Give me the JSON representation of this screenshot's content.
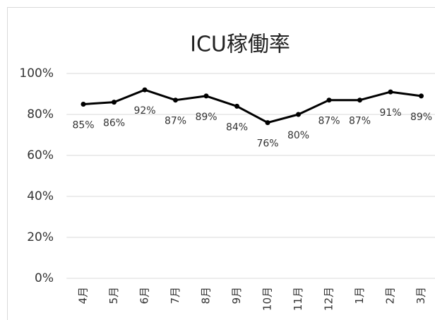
{
  "chart_data": {
    "type": "line",
    "title": "ICU稼働率",
    "categories": [
      "4月",
      "5月",
      "6月",
      "7月",
      "8月",
      "9月",
      "10月",
      "11月",
      "12月",
      "1月",
      "2月",
      "3月"
    ],
    "series": [
      {
        "name": "ICU稼働率",
        "color": "#000000",
        "values": [
          85,
          86,
          92,
          87,
          89,
          84,
          76,
          80,
          87,
          87,
          91,
          89
        ],
        "value_labels": [
          "85%",
          "86%",
          "92%",
          "87%",
          "89%",
          "84%",
          "76%",
          "80%",
          "87%",
          "87%",
          "91%",
          "89%"
        ]
      }
    ],
    "ylim": [
      0,
      100
    ],
    "yticks": [
      {
        "value": 0,
        "label": "0%"
      },
      {
        "value": 20,
        "label": "20%"
      },
      {
        "value": 40,
        "label": "40%"
      },
      {
        "value": 60,
        "label": "60%"
      },
      {
        "value": 80,
        "label": "80%"
      },
      {
        "value": 100,
        "label": "100%"
      }
    ],
    "grid": true
  }
}
